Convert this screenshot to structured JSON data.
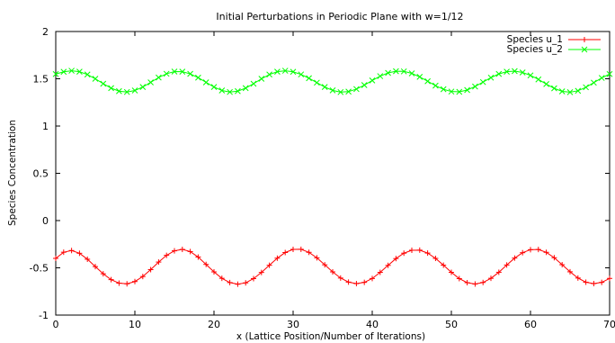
{
  "chart_data": {
    "type": "line",
    "title": "Initial Perturbations in Periodic Plane with w=1/12",
    "xlabel": "x (Lattice Position/Number of Iterations)",
    "ylabel": "Species Concentration",
    "xlim": [
      0,
      70
    ],
    "ylim": [
      -1,
      2
    ],
    "xticks": [
      0,
      10,
      20,
      30,
      40,
      50,
      60,
      70
    ],
    "yticks": [
      -1,
      -0.5,
      0,
      0.5,
      1,
      1.5,
      2
    ],
    "legend_position": "top-right",
    "grid": false,
    "series": [
      {
        "name": "Species u_1",
        "color": "#ff0000",
        "marker": "plus",
        "x": [
          0,
          1,
          2,
          3,
          4,
          5,
          6,
          7,
          8,
          9,
          10,
          11,
          12,
          13,
          14,
          15,
          16,
          17,
          18,
          19,
          20,
          21,
          22,
          23,
          24,
          25,
          26,
          27,
          28,
          29,
          30,
          31,
          32,
          33,
          34,
          35,
          36,
          37,
          38,
          39,
          40,
          41,
          42,
          43,
          44,
          45,
          46,
          47,
          48,
          49,
          50,
          51,
          52,
          53,
          54,
          55,
          56,
          57,
          58,
          59,
          60,
          61,
          62,
          63,
          64,
          65,
          66,
          67,
          68,
          69,
          70
        ],
        "y": [
          -0.4,
          -0.335,
          -0.317,
          -0.346,
          -0.409,
          -0.487,
          -0.563,
          -0.625,
          -0.662,
          -0.669,
          -0.645,
          -0.592,
          -0.519,
          -0.439,
          -0.368,
          -0.32,
          -0.305,
          -0.328,
          -0.386,
          -0.464,
          -0.543,
          -0.611,
          -0.656,
          -0.673,
          -0.659,
          -0.614,
          -0.549,
          -0.473,
          -0.398,
          -0.338,
          -0.305,
          -0.304,
          -0.336,
          -0.394,
          -0.468,
          -0.543,
          -0.608,
          -0.651,
          -0.667,
          -0.654,
          -0.613,
          -0.548,
          -0.474,
          -0.402,
          -0.345,
          -0.314,
          -0.313,
          -0.344,
          -0.4,
          -0.472,
          -0.548,
          -0.614,
          -0.657,
          -0.671,
          -0.655,
          -0.611,
          -0.547,
          -0.47,
          -0.397,
          -0.34,
          -0.308,
          -0.306,
          -0.336,
          -0.393,
          -0.467,
          -0.542,
          -0.608,
          -0.652,
          -0.667,
          -0.654,
          -0.612
        ]
      },
      {
        "name": "Species u_2",
        "color": "#00ff00",
        "marker": "x",
        "x": [
          0,
          1,
          2,
          3,
          4,
          5,
          6,
          7,
          8,
          9,
          10,
          11,
          12,
          13,
          14,
          15,
          16,
          17,
          18,
          19,
          20,
          21,
          22,
          23,
          24,
          25,
          26,
          27,
          28,
          29,
          30,
          31,
          32,
          33,
          34,
          35,
          36,
          37,
          38,
          39,
          40,
          41,
          42,
          43,
          44,
          45,
          46,
          47,
          48,
          49,
          50,
          51,
          52,
          53,
          54,
          55,
          56,
          57,
          58,
          59,
          60,
          61,
          62,
          63,
          64,
          65,
          66,
          67,
          68,
          69,
          70
        ],
        "y": [
          1.55,
          1.574,
          1.585,
          1.575,
          1.545,
          1.5,
          1.448,
          1.401,
          1.369,
          1.36,
          1.376,
          1.413,
          1.462,
          1.513,
          1.553,
          1.576,
          1.575,
          1.552,
          1.512,
          1.462,
          1.413,
          1.376,
          1.36,
          1.369,
          1.401,
          1.448,
          1.5,
          1.545,
          1.575,
          1.585,
          1.574,
          1.546,
          1.506,
          1.459,
          1.413,
          1.377,
          1.359,
          1.364,
          1.391,
          1.433,
          1.482,
          1.528,
          1.562,
          1.58,
          1.578,
          1.557,
          1.52,
          1.474,
          1.427,
          1.389,
          1.365,
          1.362,
          1.381,
          1.418,
          1.465,
          1.512,
          1.551,
          1.575,
          1.581,
          1.567,
          1.536,
          1.493,
          1.444,
          1.399,
          1.367,
          1.358,
          1.373,
          1.41,
          1.459,
          1.509,
          1.55
        ]
      }
    ]
  }
}
